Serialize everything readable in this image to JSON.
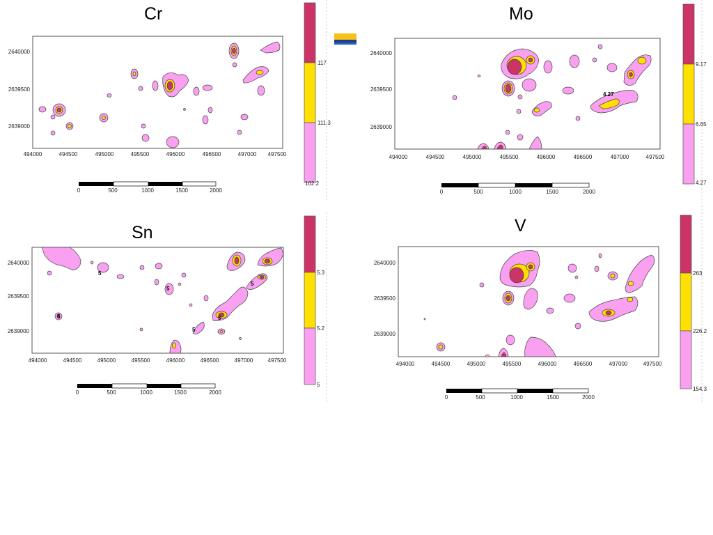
{
  "maps": [
    {
      "element": "Cr",
      "x_ticks": [
        "494000",
        "494500",
        "495000",
        "495500",
        "496000",
        "496500",
        "497000",
        "497500"
      ],
      "y_ticks": [
        "2640000",
        "2639500",
        "2639000"
      ],
      "legend_values": [
        "117",
        "111.3",
        "102.2"
      ],
      "contour_labels": [],
      "scalebar_labels": [
        "0",
        "500",
        "1000",
        "1500",
        "2000"
      ]
    },
    {
      "element": "Mo",
      "x_ticks": [
        "494000",
        "494500",
        "495000",
        "495500",
        "496000",
        "496500",
        "497000",
        "497500"
      ],
      "y_ticks": [
        "2640000",
        "2639500",
        "2639000"
      ],
      "legend_values": [
        "9.17",
        "6.65",
        "4.27"
      ],
      "contour_labels": [
        "4.27"
      ],
      "scalebar_labels": [
        "0",
        "500",
        "1000",
        "1500",
        "2000"
      ]
    },
    {
      "element": "Sn",
      "x_ticks": [
        "494000",
        "494500",
        "495000",
        "495500",
        "496000",
        "496500",
        "497000",
        "497500"
      ],
      "y_ticks": [
        "2640000",
        "2639500",
        "2639000"
      ],
      "legend_values": [
        "5.3",
        "5.2",
        "5"
      ],
      "contour_labels": [
        "5",
        "5",
        "5",
        "5",
        "5",
        "5"
      ],
      "scalebar_labels": [
        "0",
        "500",
        "1000",
        "1500",
        "2000"
      ]
    },
    {
      "element": "V",
      "x_ticks": [
        "494000",
        "494500",
        "495000",
        "495500",
        "496000",
        "496500",
        "497000",
        "497500"
      ],
      "y_ticks": [
        "2640000",
        "2639500",
        "2639000"
      ],
      "legend_values": [
        "263",
        "226.2",
        "154.3"
      ],
      "contour_labels": [],
      "scalebar_labels": [
        "0",
        "500",
        "1000",
        "1500",
        "2000"
      ]
    }
  ],
  "colors": {
    "low": "#f9a0f0",
    "mid": "#ffe000",
    "high": "#cc3366",
    "frame": "#555555"
  }
}
